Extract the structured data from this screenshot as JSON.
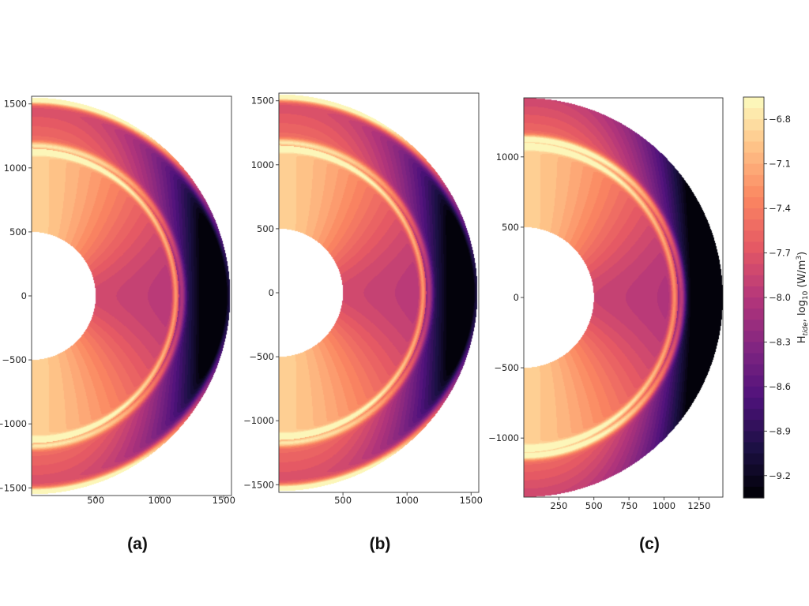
{
  "chart_data": [
    {
      "type": "heatmap",
      "panel_label": "(a)",
      "description_kind": "half-annulus contour map",
      "x_ticks": [
        "500",
        "1000",
        "1500"
      ],
      "y_ticks": [
        "1500",
        "1000",
        "500",
        "0",
        "−500",
        "−1000",
        "−1500"
      ],
      "xlim": [
        0,
        1560
      ],
      "ylim": [
        -1560,
        1560
      ],
      "radii": {
        "inner": 500,
        "interface": 1150,
        "outer": 1550
      }
    },
    {
      "type": "heatmap",
      "panel_label": "(b)",
      "x_ticks": [
        "500",
        "1000",
        "1500"
      ],
      "y_ticks": [
        "1500",
        "1000",
        "500",
        "0",
        "−500",
        "−1000",
        "−1500"
      ],
      "xlim": [
        0,
        1560
      ],
      "ylim": [
        -1560,
        1560
      ],
      "radii": {
        "inner": 500,
        "interface": 1150,
        "outer": 1550
      }
    },
    {
      "type": "heatmap",
      "panel_label": "(c)",
      "x_ticks": [
        "250",
        "500",
        "750",
        "1000",
        "1250"
      ],
      "y_ticks": [
        "1000",
        "500",
        "0",
        "−500",
        "−1000"
      ],
      "xlim": [
        0,
        1420
      ],
      "ylim": [
        -1420,
        1420
      ],
      "radii": {
        "inner": 500,
        "interface": 1100,
        "outer": 1420
      }
    }
  ],
  "colorbar": {
    "label_main": "H",
    "label_sub": "tide",
    "label_rest": ", log",
    "label_log_sub": "10",
    "label_units": " (W/m",
    "label_units_sup": "3",
    "label_close": ")",
    "ticks": [
      "−6.8",
      "−7.1",
      "−7.4",
      "−7.7",
      "−8.0",
      "−8.3",
      "−8.6",
      "−8.9",
      "−9.2"
    ],
    "tick_values": [
      -6.8,
      -7.1,
      -7.4,
      -7.7,
      -8.0,
      -8.3,
      -8.6,
      -8.9,
      -9.2
    ],
    "range": [
      -6.65,
      -9.35
    ],
    "colormap": "magma",
    "colormap_stops": [
      "#000004",
      "#1c1044",
      "#4f127b",
      "#812581",
      "#b5367a",
      "#e55964",
      "#fb8761",
      "#fec287",
      "#fcfdbf"
    ]
  }
}
